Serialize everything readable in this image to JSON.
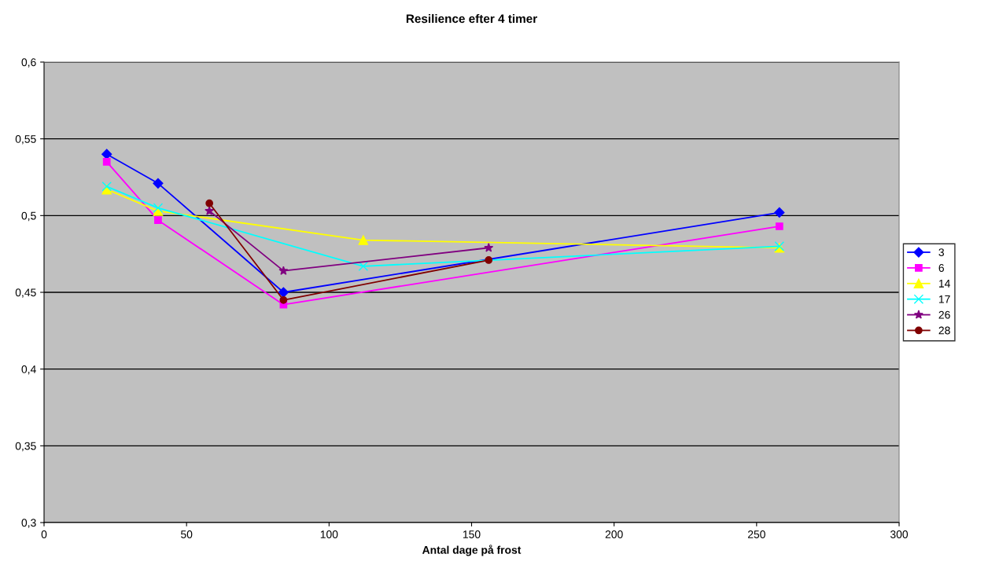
{
  "chart_data": {
    "type": "line",
    "title": "Resilience efter 4 timer",
    "xlabel": "Antal dage på frost",
    "xlim": [
      0,
      300
    ],
    "xticks": [
      0,
      50,
      100,
      150,
      200,
      250,
      300
    ],
    "ylim": [
      0.3,
      0.6
    ],
    "yticks": [
      {
        "value": 0.3,
        "label": "0,3"
      },
      {
        "value": 0.35,
        "label": "0,35"
      },
      {
        "value": 0.4,
        "label": "0,4"
      },
      {
        "value": 0.45,
        "label": "0,45"
      },
      {
        "value": 0.5,
        "label": "0,5"
      },
      {
        "value": 0.55,
        "label": "0,55"
      },
      {
        "value": 0.6,
        "label": "0,6"
      }
    ],
    "grid": "y",
    "legend": "right",
    "series": [
      {
        "name": "3",
        "color": "#0000ff",
        "marker": "diamond",
        "x": [
          22,
          40,
          84,
          258
        ],
        "values": [
          0.54,
          0.521,
          0.45,
          0.502
        ]
      },
      {
        "name": "6",
        "color": "#ff00ff",
        "marker": "square",
        "x": [
          22,
          40,
          84,
          258
        ],
        "values": [
          0.535,
          0.497,
          0.442,
          0.493
        ]
      },
      {
        "name": "14",
        "color": "#ffff00",
        "marker": "triangle",
        "x": [
          22,
          40,
          112,
          258
        ],
        "values": [
          0.517,
          0.503,
          0.484,
          0.479
        ]
      },
      {
        "name": "17",
        "color": "#00ffff",
        "marker": "cross",
        "x": [
          22,
          40,
          112,
          258
        ],
        "values": [
          0.519,
          0.505,
          0.467,
          0.48
        ]
      },
      {
        "name": "26",
        "color": "#800080",
        "marker": "star",
        "x": [
          58,
          84,
          156
        ],
        "values": [
          0.503,
          0.464,
          0.479
        ]
      },
      {
        "name": "28",
        "color": "#800000",
        "marker": "circle",
        "x": [
          58,
          84,
          156
        ],
        "values": [
          0.508,
          0.445,
          0.471
        ]
      }
    ]
  }
}
